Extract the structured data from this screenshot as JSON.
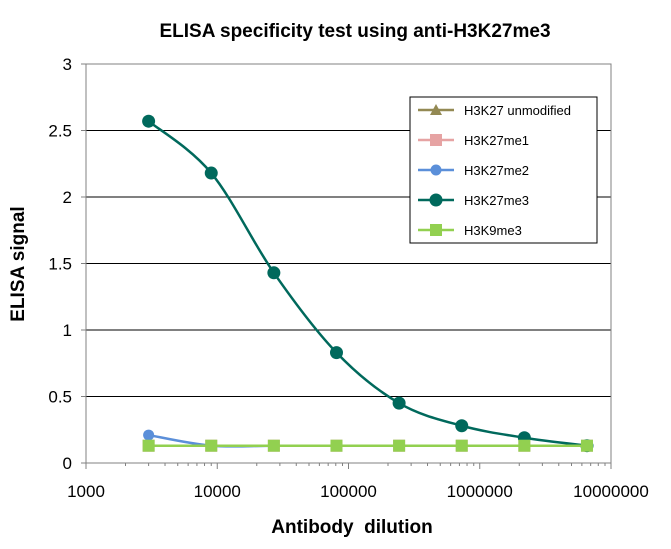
{
  "chart_data": {
    "type": "line",
    "title": "ELISA specificity test using anti-H3K27me3",
    "xlabel": "Antibody  dilution",
    "ylabel": "ELISA signal",
    "x_scale": "log",
    "xlim": [
      1000,
      10000000
    ],
    "ylim": [
      0,
      3
    ],
    "x_tick_labels": [
      "1000",
      "10000",
      "100000",
      "1000000",
      "10000000"
    ],
    "y_tick_labels": [
      "0",
      "0.5",
      "1",
      "1.5",
      "2",
      "2.5",
      "3"
    ],
    "grid": "horizontal major gridlines",
    "legend_position": "top-right",
    "x": [
      3000,
      9000,
      27000,
      81000,
      243000,
      729000,
      2187000,
      6561000
    ],
    "series": [
      {
        "name": "H3K27 unmodified",
        "color": "#938953",
        "marker": "triangle",
        "values": [
          0.13,
          0.13,
          0.13,
          0.13,
          0.13,
          0.13,
          0.13,
          0.13
        ]
      },
      {
        "name": "H3K27me1",
        "color": "#e6a3a3",
        "marker": "square",
        "values": [
          0.13,
          0.13,
          0.13,
          0.13,
          0.13,
          0.13,
          0.13,
          0.13
        ]
      },
      {
        "name": "H3K27me2",
        "color": "#5b8fd9",
        "marker": "circle",
        "values": [
          0.21,
          0.13,
          0.13,
          0.13,
          0.13,
          0.13,
          0.13,
          0.13
        ]
      },
      {
        "name": "H3K27me3",
        "color": "#00695c",
        "marker": "circle-large",
        "values": [
          2.57,
          2.18,
          1.43,
          0.83,
          0.45,
          0.28,
          0.19,
          0.13
        ]
      },
      {
        "name": "H3K9me3",
        "color": "#92d050",
        "marker": "square",
        "values": [
          0.13,
          0.13,
          0.13,
          0.13,
          0.13,
          0.13,
          0.13,
          0.13
        ]
      }
    ]
  }
}
